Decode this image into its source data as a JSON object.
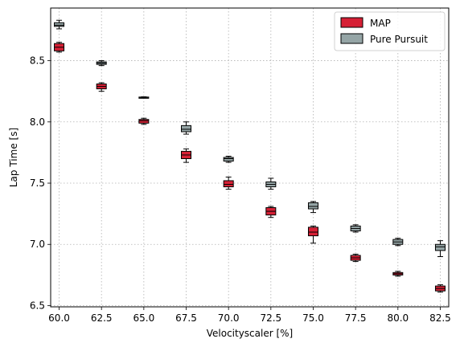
{
  "chart_data": {
    "type": "box",
    "title": "",
    "xlabel": "Velocityscaler [%]",
    "ylabel": "Lap Time [s]",
    "xlim": [
      59.5,
      83
    ],
    "ylim": [
      6.49,
      8.93
    ],
    "x_ticks": [
      60.0,
      62.5,
      65.0,
      67.5,
      70.0,
      72.5,
      75.0,
      77.5,
      80.0,
      82.5
    ],
    "x_tick_labels": [
      "60.0",
      "62.5",
      "65.0",
      "67.5",
      "70.0",
      "72.5",
      "75.0",
      "77.5",
      "80.0",
      "82.5"
    ],
    "y_ticks": [
      6.5,
      7.0,
      7.5,
      8.0,
      8.5
    ],
    "y_tick_labels": [
      "6.5",
      "7.0",
      "7.5",
      "8.0",
      "8.5"
    ],
    "grid": true,
    "legend_position": "top-right",
    "series": [
      {
        "name": "MAP",
        "color": "#d62035",
        "boxes": [
          {
            "x": 60.0,
            "whislo": 8.57,
            "q1": 8.58,
            "med": 8.61,
            "q3": 8.64,
            "whishi": 8.65
          },
          {
            "x": 62.5,
            "whislo": 8.25,
            "q1": 8.27,
            "med": 8.29,
            "q3": 8.31,
            "whishi": 8.32
          },
          {
            "x": 65.0,
            "whislo": 7.98,
            "q1": 7.99,
            "med": 8.01,
            "q3": 8.02,
            "whishi": 8.03
          },
          {
            "x": 67.5,
            "whislo": 7.67,
            "q1": 7.7,
            "med": 7.73,
            "q3": 7.76,
            "whishi": 7.78
          },
          {
            "x": 70.0,
            "whislo": 7.45,
            "q1": 7.47,
            "med": 7.49,
            "q3": 7.52,
            "whishi": 7.55
          },
          {
            "x": 72.5,
            "whislo": 7.22,
            "q1": 7.24,
            "med": 7.27,
            "q3": 7.3,
            "whishi": 7.31
          },
          {
            "x": 75.0,
            "whislo": 7.01,
            "q1": 7.07,
            "med": 7.1,
            "q3": 7.14,
            "whishi": 7.15
          },
          {
            "x": 77.5,
            "whislo": 6.86,
            "q1": 6.87,
            "med": 6.89,
            "q3": 6.91,
            "whishi": 6.92
          },
          {
            "x": 80.0,
            "whislo": 6.74,
            "q1": 6.75,
            "med": 6.76,
            "q3": 6.77,
            "whishi": 6.78
          },
          {
            "x": 82.5,
            "whislo": 6.61,
            "q1": 6.62,
            "med": 6.64,
            "q3": 6.66,
            "whishi": 6.67
          }
        ]
      },
      {
        "name": "Pure Pursuit",
        "color": "#95a5a6",
        "boxes": [
          {
            "x": 60.0,
            "whislo": 8.76,
            "q1": 8.78,
            "med": 8.79,
            "q3": 8.81,
            "whishi": 8.83
          },
          {
            "x": 62.5,
            "whislo": 8.46,
            "q1": 8.47,
            "med": 8.48,
            "q3": 8.49,
            "whishi": 8.5
          },
          {
            "x": 65.0,
            "whislo": 8.195,
            "q1": 8.198,
            "med": 8.2,
            "q3": 8.203,
            "whishi": 8.205
          },
          {
            "x": 67.5,
            "whislo": 7.9,
            "q1": 7.92,
            "med": 7.94,
            "q3": 7.97,
            "whishi": 8.0
          },
          {
            "x": 70.0,
            "whislo": 7.67,
            "q1": 7.68,
            "med": 7.7,
            "q3": 7.71,
            "whishi": 7.72
          },
          {
            "x": 72.5,
            "whislo": 7.45,
            "q1": 7.47,
            "med": 7.49,
            "q3": 7.51,
            "whishi": 7.54
          },
          {
            "x": 75.0,
            "whislo": 7.26,
            "q1": 7.29,
            "med": 7.31,
            "q3": 7.34,
            "whishi": 7.35
          },
          {
            "x": 77.5,
            "whislo": 7.1,
            "q1": 7.11,
            "med": 7.13,
            "q3": 7.15,
            "whishi": 7.16
          },
          {
            "x": 80.0,
            "whislo": 6.99,
            "q1": 7.0,
            "med": 7.02,
            "q3": 7.04,
            "whishi": 7.05
          },
          {
            "x": 82.5,
            "whislo": 6.9,
            "q1": 6.95,
            "med": 6.98,
            "q3": 7.0,
            "whishi": 7.03
          }
        ]
      }
    ]
  }
}
